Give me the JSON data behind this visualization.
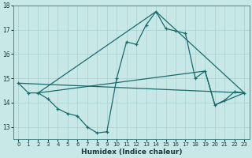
{
  "xlabel": "Humidex (Indice chaleur)",
  "bg_color": "#c8e8e8",
  "line_color": "#1a6b6b",
  "grid_color": "#a8d0d0",
  "xlim": [
    -0.5,
    23.5
  ],
  "ylim": [
    12.5,
    18.0
  ],
  "yticks": [
    13,
    14,
    15,
    16,
    17,
    18
  ],
  "xticks": [
    0,
    1,
    2,
    3,
    4,
    5,
    6,
    7,
    8,
    9,
    10,
    11,
    12,
    13,
    14,
    15,
    16,
    17,
    18,
    19,
    20,
    21,
    22,
    23
  ],
  "series": [
    {
      "x": [
        0,
        1,
        2,
        3,
        4,
        5,
        6,
        7,
        8,
        9,
        10,
        11,
        12,
        13,
        14,
        15,
        16,
        17,
        18,
        19,
        20,
        21,
        22,
        23
      ],
      "y": [
        14.8,
        14.4,
        14.4,
        14.15,
        13.75,
        13.55,
        13.45,
        13.0,
        12.75,
        12.8,
        15.0,
        16.5,
        16.4,
        17.2,
        17.75,
        17.05,
        16.95,
        16.85,
        15.0,
        15.3,
        13.9,
        14.1,
        14.45,
        14.4
      ]
    },
    {
      "x": [
        0,
        23
      ],
      "y": [
        14.8,
        14.4
      ]
    },
    {
      "x": [
        2,
        14,
        23
      ],
      "y": [
        14.4,
        17.75,
        14.4
      ]
    },
    {
      "x": [
        2,
        19,
        20,
        23
      ],
      "y": [
        14.4,
        15.3,
        13.9,
        14.4
      ]
    }
  ]
}
